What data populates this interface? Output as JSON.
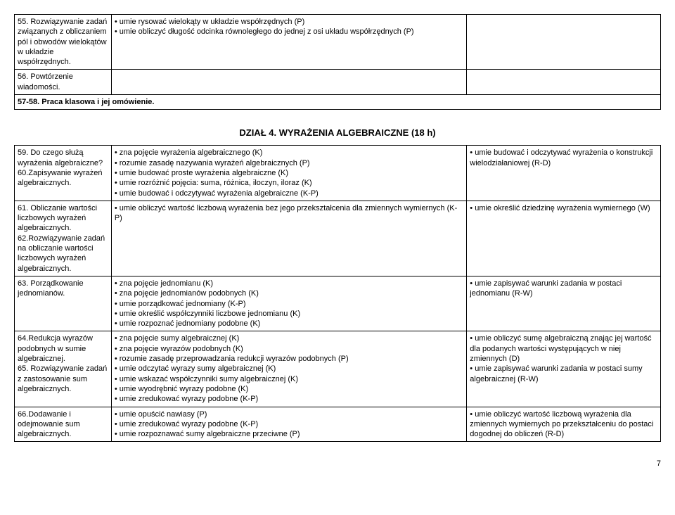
{
  "table1": {
    "rows": [
      {
        "c1": "55. Rozwiązywanie zadań związanych z obliczaniem pól i obwodów wielokątów w układzie współrzędnych.",
        "c2": "• umie rysować wielokąty w układzie współrzędnych (P)\n• umie obliczyć długość odcinka równoległego do jednej z osi układu współrzędnych (P)",
        "c3": ""
      },
      {
        "c1": "56. Powtórzenie wiadomości.",
        "c2": "",
        "c3": ""
      },
      {
        "c1": "57-58. Praca klasowa i jej omówienie.",
        "c2_colspan": true,
        "c3": ""
      }
    ]
  },
  "section_title": "DZIAŁ 4. WYRAŻENIA ALGEBRAICZNE (18 h)",
  "table2": {
    "rows": [
      {
        "c1": "59. Do czego służą wyrażenia algebraiczne? 60.Zapisywanie wyrażeń algebraicznych.",
        "c2": "• zna pojęcie wyrażenia algebraicznego (K)\n• rozumie zasadę nazywania wyrażeń algebraicznych (P)\n• umie budować proste wyrażenia algebraiczne (K)\n• umie rozróżnić pojęcia: suma, różnica, iloczyn, iloraz (K)\n• umie budować i odczytywać wyrażenia algebraiczne (K-P)",
        "c3": "• umie budować i odczytywać wyrażenia o konstrukcji wielodziałaniowej (R-D)"
      },
      {
        "c1": "61. Obliczanie wartości liczbowych wyrażeń algebraicznych. 62.Rozwiązywanie zadań na obliczanie wartości liczbowych wyrażeń algebraicznych.",
        "c2": "• umie obliczyć wartość liczbową wyrażenia bez jego przekształcenia dla zmiennych wymiernych (K-P)",
        "c3": "• umie określić dziedzinę wyrażenia wymiernego (W)"
      },
      {
        "c1": "63. Porządkowanie jednomianów.",
        "c2": "• zna pojęcie jednomianu (K)\n• zna pojęcie jednomianów podobnych (K)\n• umie porządkować jednomiany (K-P)\n• umie określić współczynniki liczbowe jednomianu (K)\n• umie rozpoznać jednomiany podobne (K)",
        "c3": "• umie zapisywać warunki zadania w postaci jednomianu (R-W)"
      },
      {
        "c1": "64.Redukcja wyrazów podobnych w  sumie algebraicznej.\n65. Rozwiązywanie zadań z zastosowanie sum algebraicznych.",
        "c2": "• zna pojęcie sumy algebraicznej (K)\n• zna pojęcie wyrazów podobnych (K)\n• rozumie zasadę przeprowadzania redukcji wyrazów podobnych (P)\n• umie odczytać wyrazy sumy algebraicznej (K)\n• umie wskazać współczynniki sumy algebraicznej (K)\n• umie wyodrębnić wyrazy podobne (K)\n• umie zredukować wyrazy podobne (K-P)",
        "c3": "• umie obliczyć sumę algebraiczną znając jej wartość dla podanych wartości występujących w niej zmiennych (D)\n• umie zapisywać warunki zadania w postaci sumy algebraicznej (R-W)"
      },
      {
        "c1": "66.Dodawanie i odejmowanie sum algebraicznych.",
        "c2": "• umie opuścić nawiasy (P)\n• umie zredukować wyrazy podobne (K-P)\n• umie rozpoznawać sumy algebraiczne przeciwne (P)",
        "c3": "• umie obliczyć wartość liczbową wyrażenia dla zmiennych wymiernych po przekształceniu do postaci dogodnej do obliczeń (R-D)"
      }
    ]
  },
  "page_number": "7"
}
